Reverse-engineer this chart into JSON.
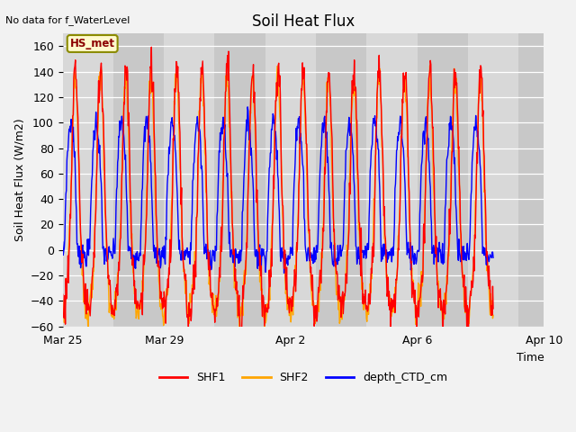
{
  "title": "Soil Heat Flux",
  "top_left_text": "No data for f_WaterLevel",
  "ylabel": "Soil Heat Flux (W/m2)",
  "xlabel": "Time",
  "annotation_box": "HS_met",
  "ylim": [
    -60,
    170
  ],
  "yticks": [
    -60,
    -40,
    -20,
    0,
    20,
    40,
    60,
    80,
    100,
    120,
    140,
    160
  ],
  "xtick_labels": [
    "Mar 25",
    "Mar 29",
    "Apr 2",
    "Apr 6",
    "Apr 10"
  ],
  "xtick_positions": [
    0,
    4,
    9,
    14,
    19
  ],
  "xlim": [
    0,
    17.5
  ],
  "series": {
    "SHF1": {
      "color": "#FF0000",
      "linewidth": 1.0
    },
    "SHF2": {
      "color": "#FFA500",
      "linewidth": 1.0
    },
    "depth_CTD_cm": {
      "color": "#0000FF",
      "linewidth": 1.0
    }
  },
  "fig_bg_color": "#F2F2F2",
  "plot_bg_color": "#E0E0E0",
  "band_colors": [
    "#D8D8D8",
    "#C8C8C8"
  ],
  "n_days": 17,
  "pts_per_day": 48,
  "shf_peak_day": 142,
  "shf_trough_night": -48,
  "ctd_peak": 100
}
